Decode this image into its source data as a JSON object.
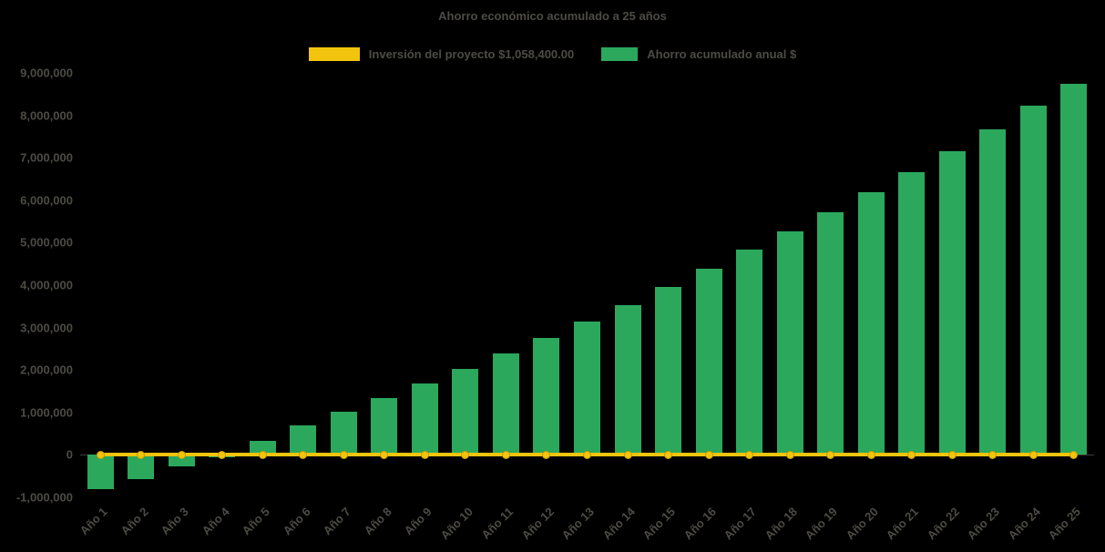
{
  "title": "Ahorro económico acumulado a 25 años",
  "background_color": "#000000",
  "text_color": "#4d4b45",
  "legend": [
    {
      "label": "Inversión del proyecto $1,058,400.00",
      "color": "#F2C40E",
      "type": "line"
    },
    {
      "label": "Ahorro acumulado anual $",
      "color": "#2BA85C",
      "type": "bar"
    }
  ],
  "chart_data": {
    "type": "bar",
    "title": "Ahorro económico acumulado a 25 años",
    "categories": [
      "Año 1",
      "Año 2",
      "Año 3",
      "Año 4",
      "Año 5",
      "Año 6",
      "Año 7",
      "Año 8",
      "Año 9",
      "Año 10",
      "Año 11",
      "Año 12",
      "Año 13",
      "Año 14",
      "Año 15",
      "Año 16",
      "Año 17",
      "Año 18",
      "Año 19",
      "Año 20",
      "Año 21",
      "Año 22",
      "Año 23",
      "Año 24",
      "Año 25"
    ],
    "series": [
      {
        "name": "Ahorro acumulado anual $",
        "type": "bar",
        "color": "#2BA85C",
        "values": [
          -800000,
          -580000,
          -280000,
          -60000,
          340000,
          690000,
          1010000,
          1330000,
          1680000,
          2030000,
          2390000,
          2760000,
          3150000,
          3530000,
          3960000,
          4380000,
          4830000,
          5260000,
          5710000,
          6190000,
          6660000,
          7160000,
          7670000,
          8230000,
          8750000
        ]
      },
      {
        "name": "Inversión del proyecto $1,058,400.00",
        "type": "line",
        "color": "#F2C40E",
        "values": [
          0,
          0,
          0,
          0,
          0,
          0,
          0,
          0,
          0,
          0,
          0,
          0,
          0,
          0,
          0,
          0,
          0,
          0,
          0,
          0,
          0,
          0,
          0,
          0,
          0
        ]
      }
    ],
    "xlabel": "",
    "ylabel": "",
    "ylim": [
      -1000000,
      9000000
    ],
    "ytick_step": 1000000,
    "grid": false,
    "legend_position": "top"
  }
}
